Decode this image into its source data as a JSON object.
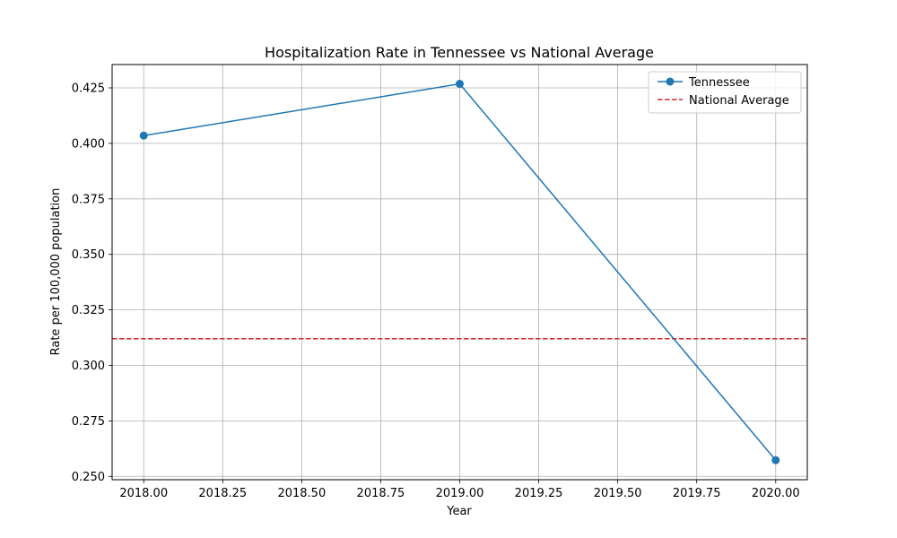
{
  "chart_data": {
    "type": "line",
    "title": "Hospitalization Rate in Tennessee vs National Average",
    "xlabel": "Year",
    "ylabel": "Rate per 100,000 population",
    "xlim": [
      2017.9,
      2020.1
    ],
    "ylim": [
      0.2485,
      0.4355
    ],
    "x_ticks": [
      2018.0,
      2018.25,
      2018.5,
      2018.75,
      2019.0,
      2019.25,
      2019.5,
      2019.75,
      2020.0
    ],
    "x_tick_labels": [
      "2018.00",
      "2018.25",
      "2018.50",
      "2018.75",
      "2019.00",
      "2019.25",
      "2019.50",
      "2019.75",
      "2020.00"
    ],
    "y_ticks": [
      0.25,
      0.275,
      0.3,
      0.325,
      0.35,
      0.375,
      0.4,
      0.425
    ],
    "y_tick_labels": [
      "0.250",
      "0.275",
      "0.300",
      "0.325",
      "0.350",
      "0.375",
      "0.400",
      "0.425"
    ],
    "grid": true,
    "legend_position": "upper right",
    "series": [
      {
        "name": "Tennessee",
        "style": "line-marker",
        "color": "#1f77b4",
        "x": [
          2018,
          2019,
          2020
        ],
        "y": [
          0.4035,
          0.4268,
          0.2573
        ]
      }
    ],
    "reference_lines": [
      {
        "name": "National Average",
        "style": "dashed",
        "color": "#d62728",
        "y": 0.312
      }
    ]
  }
}
